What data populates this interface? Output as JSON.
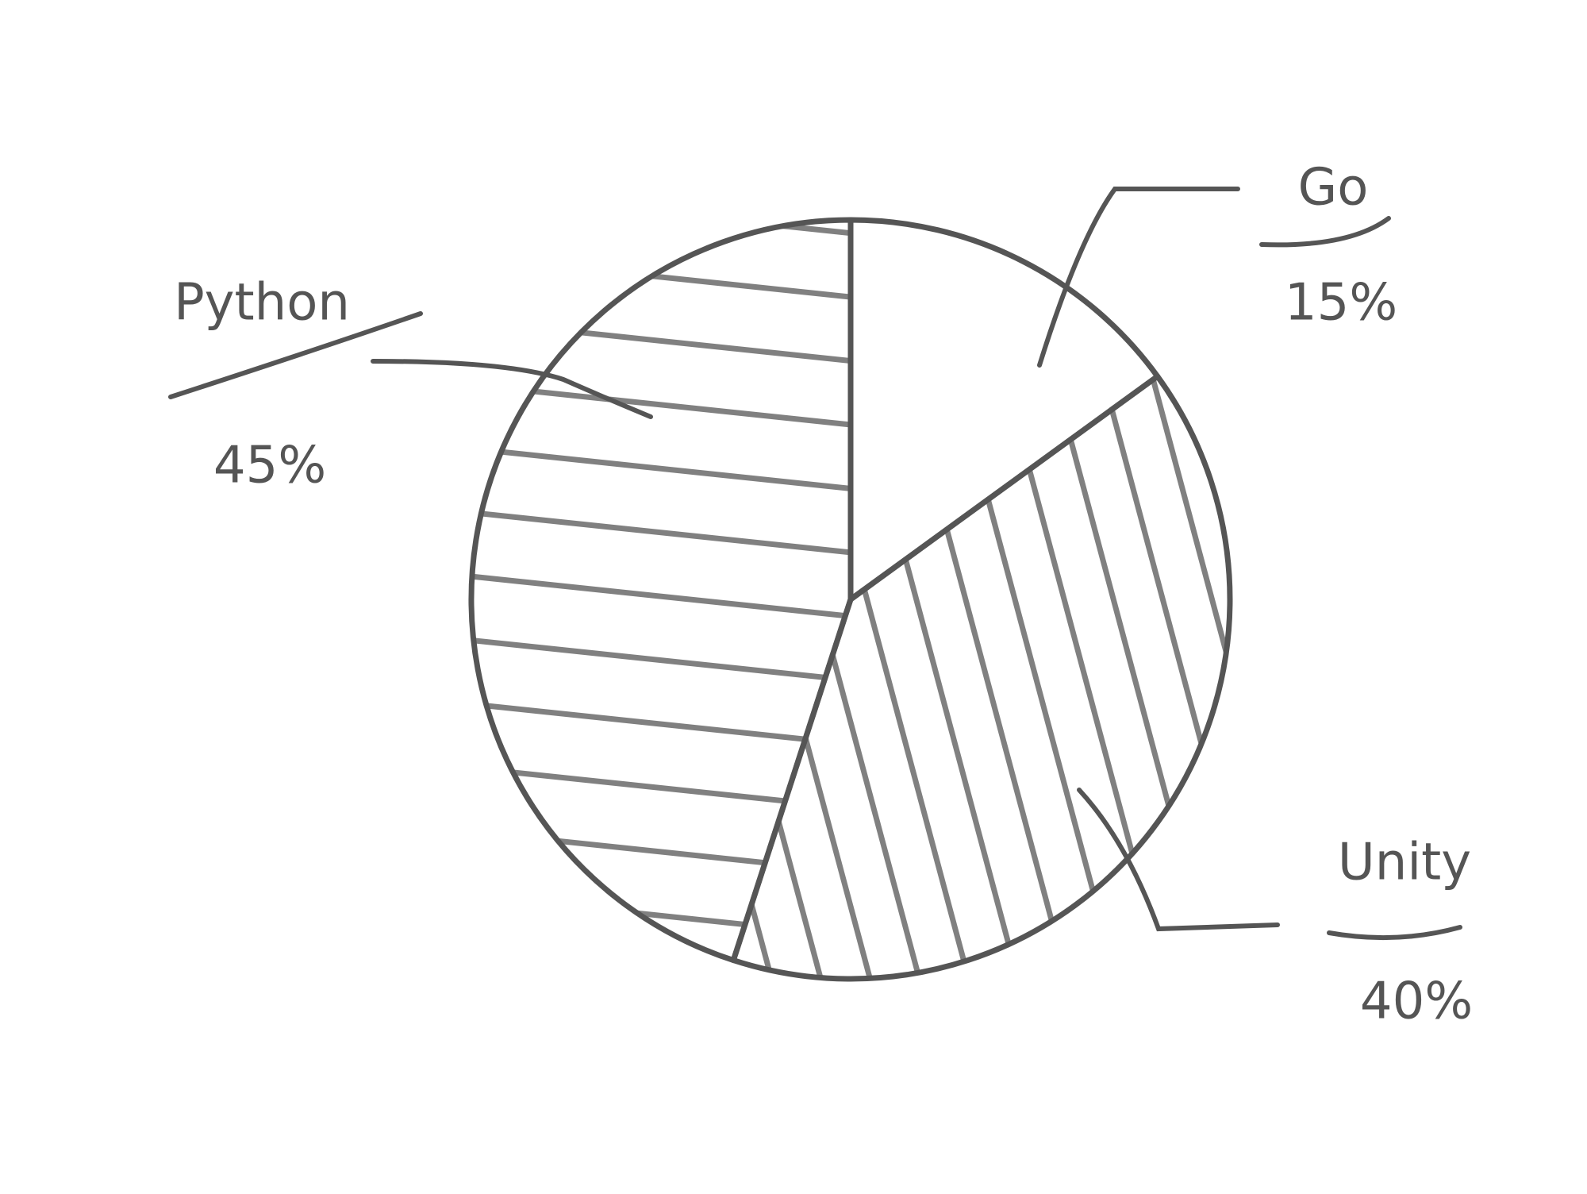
{
  "chart_data": {
    "type": "pie",
    "categories": [
      "Python",
      "Go",
      "Unity"
    ],
    "values": [
      45,
      15,
      40
    ],
    "value_labels": [
      "45%",
      "15%",
      "40%"
    ],
    "color": "#555555"
  }
}
